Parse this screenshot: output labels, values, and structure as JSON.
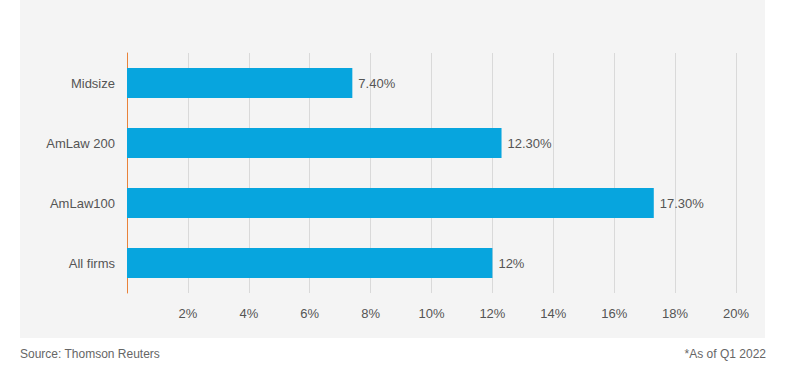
{
  "chart_data": {
    "type": "bar",
    "orientation": "horizontal",
    "categories": [
      "Midsize",
      "AmLaw 200",
      "AmLaw100",
      "All firms"
    ],
    "values": [
      7.4,
      12.3,
      17.3,
      12
    ],
    "value_labels": [
      "7.40%",
      "12.30%",
      "17.30%",
      "12%"
    ],
    "data_labels": true,
    "color": "#07a5de",
    "xlim": [
      0,
      20
    ],
    "xticks": [
      {
        "value": 2,
        "label": "2%"
      },
      {
        "value": 4,
        "label": "4%"
      },
      {
        "value": 6,
        "label": "6%"
      },
      {
        "value": 8,
        "label": "8%"
      },
      {
        "value": 10,
        "label": "10%"
      },
      {
        "value": 12,
        "label": "12%"
      },
      {
        "value": 14,
        "label": "14%"
      },
      {
        "value": 16,
        "label": "16%"
      },
      {
        "value": 18,
        "label": "18%"
      },
      {
        "value": 20,
        "label": "20%"
      }
    ],
    "grid": true,
    "source": "Source: Thomson Reuters",
    "footnote": "*As of Q1 2022"
  }
}
